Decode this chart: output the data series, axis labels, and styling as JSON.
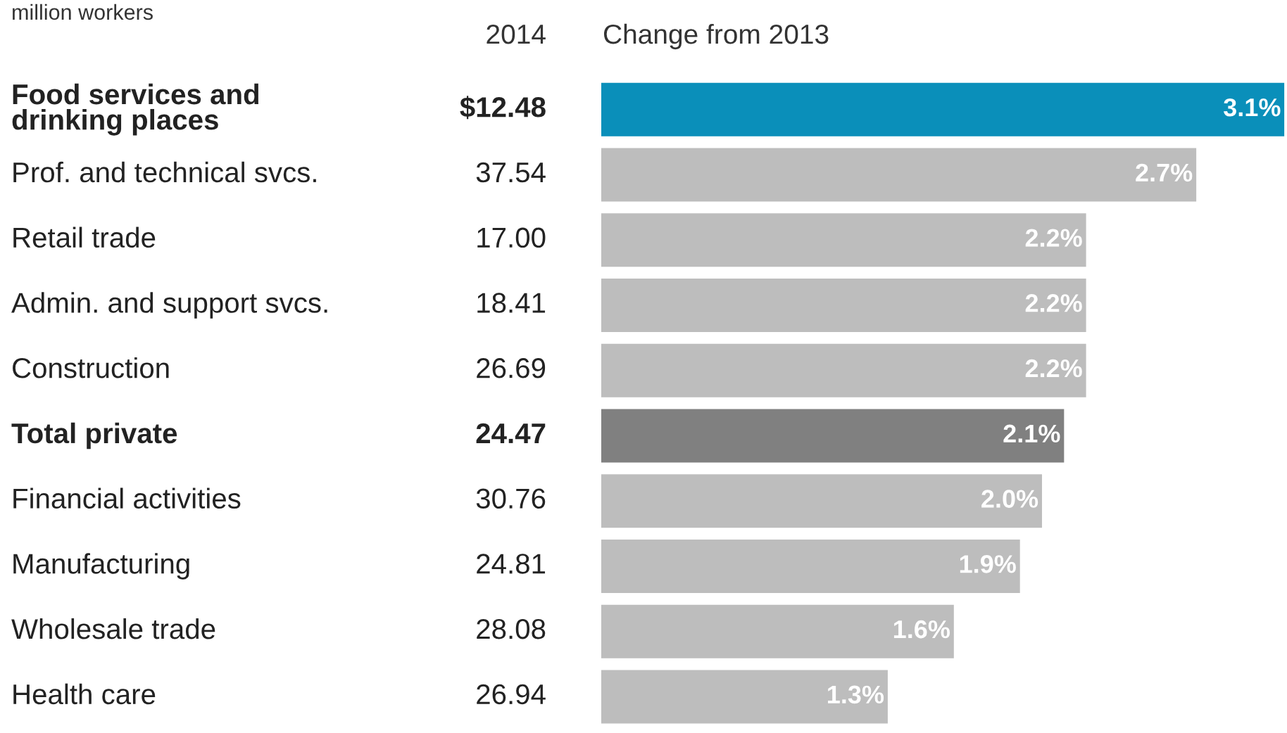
{
  "chart_data": {
    "type": "bar",
    "orientation": "horizontal",
    "relative": false,
    "subtitle": "million workers",
    "y2label": "2014",
    "xlabel": "Change from 2013",
    "categories": [
      "Food services and\ndrinking places",
      "Prof. and technical svcs.",
      "Retail trade",
      "Admin. and support svcs.",
      "Construction",
      "Total private",
      "Financial activities",
      "Manufacturing",
      "Wholesale trade",
      "Health care"
    ],
    "values": [
      3.1,
      2.7,
      2.2,
      2.2,
      2.2,
      2.1,
      2.0,
      1.9,
      1.6,
      1.3
    ],
    "value_labels": [
      "3.1%",
      "2.7%",
      "2.2%",
      "2.2%",
      "2.2%",
      "2.1%",
      "2.0%",
      "1.9%",
      "1.6%",
      "1.3%"
    ],
    "colors": [
      "#0a8fba",
      "#bdbdbd",
      "#bdbdbd",
      "#bdbdbd",
      "#bdbdbd",
      "#808080",
      "#bdbdbd",
      "#bdbdbd",
      "#bdbdbd",
      "#bdbdbd"
    ],
    "annotations": [
      "$12.48",
      "37.54",
      "17.00",
      "18.41",
      "26.69",
      "24.47",
      "30.76",
      "24.81",
      "28.08",
      "26.94"
    ]
  }
}
